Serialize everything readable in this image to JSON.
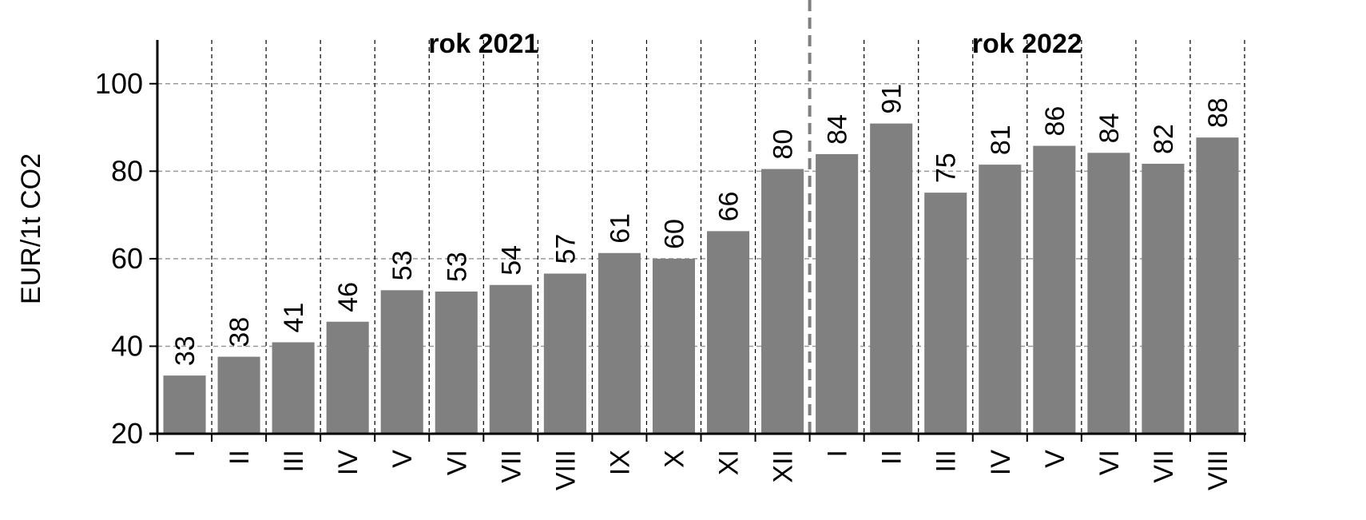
{
  "chart_data": {
    "type": "bar",
    "ylabel": "EUR/1t CO2",
    "ylim": [
      20,
      110
    ],
    "yticks": [
      20,
      40,
      60,
      80,
      100
    ],
    "grid": true,
    "bar_color": "#808080",
    "groups": [
      {
        "label": "rok 2021",
        "count": 12
      },
      {
        "label": "rok 2022",
        "count": 8
      }
    ],
    "categories": [
      "I",
      "II",
      "III",
      "IV",
      "V",
      "VI",
      "VII",
      "VIII",
      "IX",
      "X",
      "XI",
      "XII",
      "I",
      "II",
      "III",
      "IV",
      "V",
      "VI",
      "VII",
      "VIII"
    ],
    "values": [
      33.3,
      37.6,
      40.9,
      45.6,
      52.8,
      52.5,
      54.0,
      56.6,
      61.3,
      60.0,
      66.3,
      80.5,
      83.9,
      90.9,
      75.1,
      81.5,
      85.8,
      84.2,
      81.7,
      87.7
    ],
    "data_labels": [
      "33",
      "38",
      "41",
      "46",
      "53",
      "53",
      "54",
      "57",
      "61",
      "60",
      "66",
      "80",
      "84",
      "91",
      "75",
      "81",
      "86",
      "84",
      "82",
      "88"
    ]
  }
}
